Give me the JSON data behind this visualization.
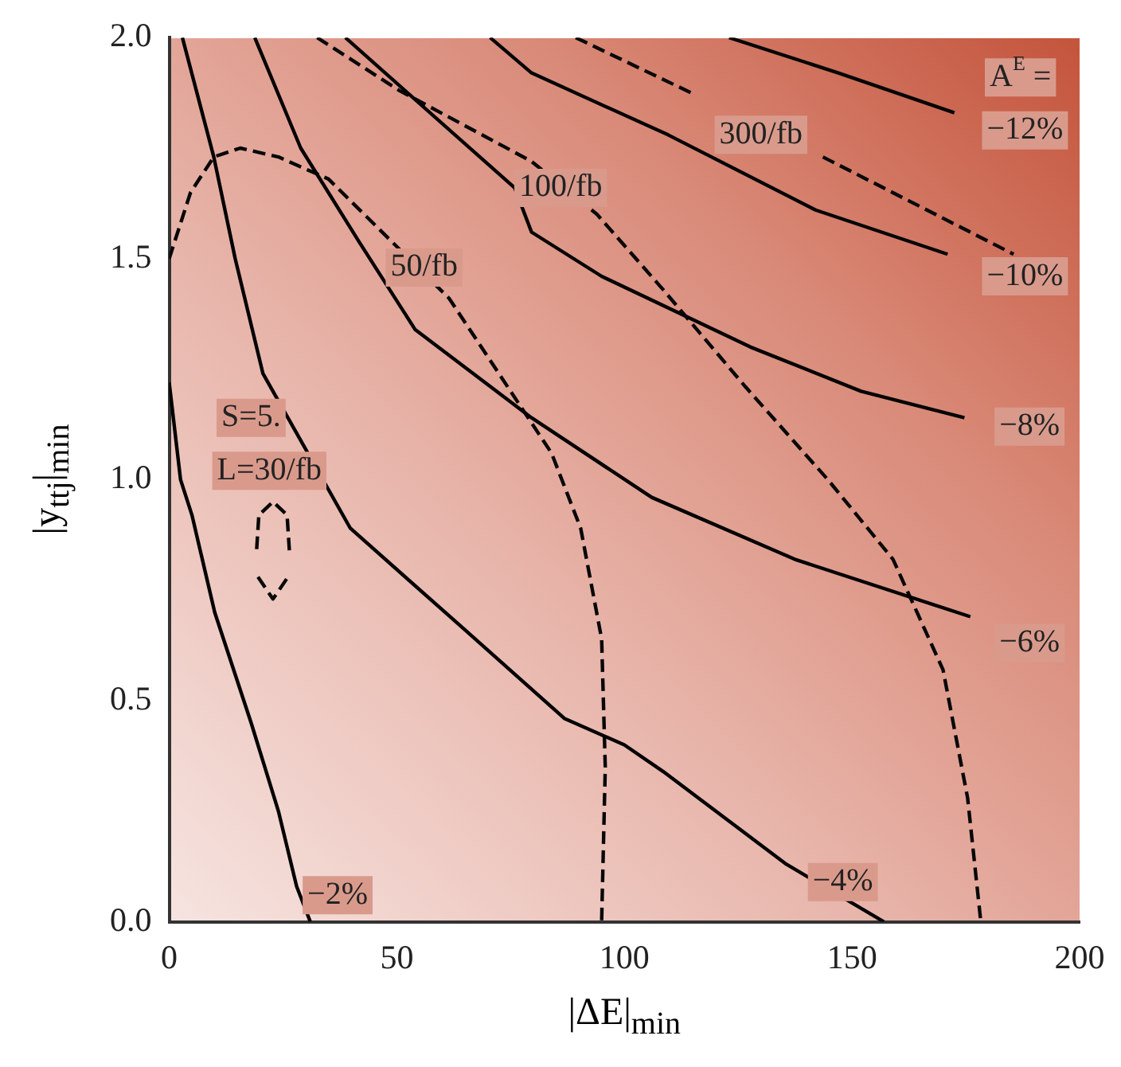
{
  "chart_data": {
    "type": "line",
    "xlabel": "|ΔE|$_{min}$",
    "ylabel": "|y$_{ttj}$|$_{min}$",
    "xlim": [
      0,
      200
    ],
    "ylim": [
      0,
      2
    ],
    "xticks": [
      0,
      50,
      100,
      150,
      200
    ],
    "yticks": [
      {
        "value": 0,
        "label": "0.0"
      },
      {
        "value": 0.5,
        "label": "0.5"
      },
      {
        "value": 1,
        "label": "1.0"
      },
      {
        "value": 1.5,
        "label": "1.5"
      },
      {
        "value": 2,
        "label": "2.0"
      }
    ],
    "grid": false,
    "legend": false,
    "marker": "none",
    "series": [
      {
        "color": "#000000",
        "line_style": "solid",
        "x": [
          0,
          2.5,
          5,
          10,
          18,
          24,
          28,
          31
        ],
        "values": [
          1.22,
          1.0,
          0.92,
          0.7,
          0.45,
          0.25,
          0.08,
          0
        ]
      },
      {
        "color": "#010101",
        "line_style": "solid",
        "x": [
          2.9,
          9.8,
          14.5,
          20.6,
          39.8,
          65,
          86.8,
          100,
          108.5,
          135.6,
          157
        ],
        "values": [
          2.0,
          1.73,
          1.5,
          1.24,
          0.89,
          0.66,
          0.46,
          0.4,
          0.34,
          0.13,
          0
        ]
      },
      {
        "color": "#020202",
        "line_style": "solid",
        "x": [
          18.8,
          28.9,
          41.6,
          54,
          79.6,
          106,
          137.4,
          176
        ],
        "values": [
          2.0,
          1.75,
          1.54,
          1.34,
          1.14,
          0.96,
          0.82,
          0.69
        ]
      },
      {
        "color": "#030303",
        "line_style": "solid",
        "x": [
          38.7,
          75.9,
          79.6,
          95,
          127.7,
          152,
          174.7
        ],
        "values": [
          2.0,
          1.66,
          1.56,
          1.46,
          1.3,
          1.2,
          1.14
        ]
      },
      {
        "color": "#040404",
        "line_style": "solid",
        "x": [
          70.5,
          79.6,
          109.6,
          142,
          171
        ],
        "values": [
          2.0,
          1.92,
          1.78,
          1.61,
          1.51
        ]
      },
      {
        "color": "#050505",
        "line_style": "solid",
        "x": [
          123,
          147,
          172.5
        ],
        "values": [
          2.0,
          1.92,
          1.83
        ]
      },
      {
        "color": "#060606",
        "line_style": "dashed",
        "x": [
          26.4,
          25.9,
          22.8,
          19.7,
          19.2
        ],
        "values": [
          0.84,
          0.92,
          0.95,
          0.92,
          0.84
        ]
      },
      {
        "color": "#0a0a0a",
        "line_style": "dashed",
        "x": [
          19.5,
          22.8,
          26.1
        ],
        "values": [
          0.78,
          0.73,
          0.78
        ]
      },
      {
        "color": "#070707",
        "line_style": "dashed",
        "x": [
          0,
          4.7,
          9.8,
          15.6,
          24,
          35,
          61.5,
          84,
          90.4,
          95,
          95.8,
          95
        ],
        "values": [
          1.5,
          1.65,
          1.73,
          1.75,
          1.73,
          1.68,
          1.41,
          1.06,
          0.89,
          0.64,
          0.35,
          0
        ]
      },
      {
        "color": "#080808",
        "line_style": "dashed",
        "x": [
          32.5,
          50.6,
          79.6,
          94,
          108.5,
          126.6,
          144.7,
          159,
          170,
          175.4,
          178.3
        ],
        "values": [
          2.0,
          1.88,
          1.72,
          1.6,
          1.43,
          1.21,
          1.0,
          0.82,
          0.57,
          0.28,
          0
        ]
      },
      {
        "color": "#090909",
        "line_style": "dashed",
        "x": [
          89.3,
          115.7,
          130,
          143.6,
          185.5
        ],
        "values": [
          2.0,
          1.87,
          null,
          1.73,
          1.51
        ]
      }
    ],
    "annotations": [
      "A$^{E}$ =",
      "−12%",
      "−10%",
      {
        "text": "−8%",
        "x": 189,
        "y": 1.12
      },
      {
        "text": "−6%",
        "x": 189,
        "y": 0.63
      },
      {
        "text": "−4%",
        "x": 148,
        "y": 0.09
      },
      {
        "text": "−2%",
        "x": 37,
        "y": 0.06
      },
      "300/fb",
      {
        "text": "100/fb",
        "x": 86,
        "y": 1.66
      },
      {
        "text": "50/fb",
        "x": 56,
        "y": 1.48
      },
      {
        "text": "S=5.",
        "x": 18,
        "y": 1.14
      },
      "L=30/fb"
    ]
  }
}
